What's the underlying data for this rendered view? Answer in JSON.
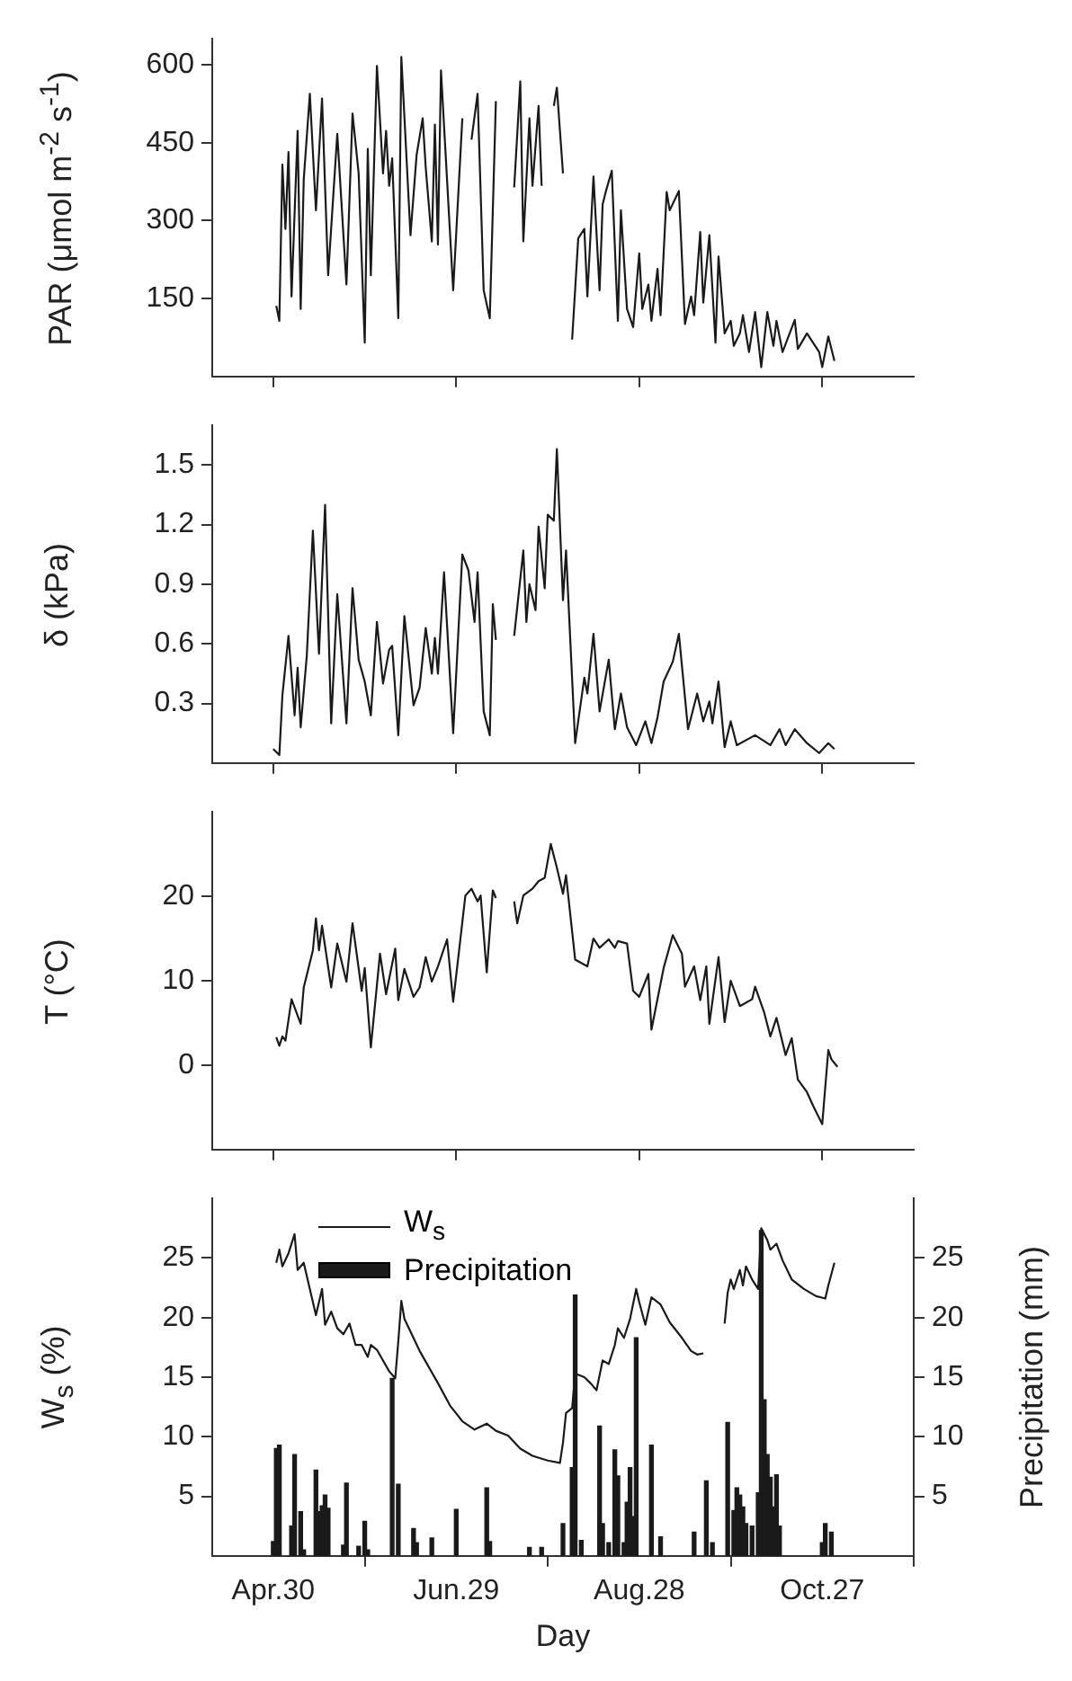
{
  "chart_data": [
    {
      "type": "line",
      "ylabel": "PAR (μmol m$^{-2}$ s$^{-1}$)",
      "tick_labels": "y",
      "xlim": [
        "--04-10",
        "--11-26"
      ],
      "xticks": [
        "--04-30",
        "--06-29",
        "--08-28",
        "--10-27"
      ],
      "ylim": [
        0,
        650
      ],
      "yticks": [
        150,
        300,
        450,
        600
      ],
      "color": "#1a1a1a",
      "x": [
        "--05-01",
        "--05-02",
        "--05-03",
        "--05-04",
        "--05-05",
        "--05-06",
        "--05-08",
        "--05-09",
        "--05-10",
        "--05-12",
        "--05-14",
        "--05-16",
        "--05-18",
        "--05-21",
        "--05-24",
        "--05-26",
        "--05-28",
        "--05-30",
        "--05-31",
        "--06-01",
        "--06-03",
        "--06-05",
        "--06-06",
        "--06-07",
        "--06-08",
        "--06-10",
        "--06-11",
        "--06-14",
        "--06-16",
        "--06-18",
        "--06-19",
        "--06-21",
        "--06-22",
        "--06-23",
        "--06-24",
        "--06-28",
        "--07-01",
        "--07-03",
        "--07-04",
        "--07-06",
        "--07-08",
        "--07-10",
        "--07-12",
        "--07-15",
        "--07-18",
        "--07-20",
        "--07-21",
        "--07-23",
        "--07-24",
        "--07-26",
        "--07-27",
        "--07-30",
        "--07-31",
        "--08-01",
        "--08-03",
        "--08-04",
        "--08-06",
        "--08-08",
        "--08-10",
        "--08-11",
        "--08-13",
        "--08-15",
        "--08-16",
        "--08-17",
        "--08-19",
        "--08-21",
        "--08-22",
        "--08-24",
        "--08-26",
        "--08-28",
        "--08-29",
        "--08-31",
        "--09-01",
        "--09-03",
        "--09-04",
        "--09-06",
        "--09-07",
        "--09-10",
        "--09-12",
        "--09-14",
        "--09-15",
        "--09-17",
        "--09-18",
        "--09-20",
        "--09-22",
        "--09-23",
        "--09-25",
        "--09-27",
        "--09-28",
        "--09-30",
        "--10-01",
        "--10-03",
        "--10-05",
        "--10-07",
        "--10-09",
        "--10-11",
        "--10-12",
        "--10-14",
        "--10-18",
        "--10-19",
        "--10-22",
        "--10-26",
        "--10-27",
        "--10-29",
        "--10-31"
      ],
      "values": [
        136,
        107,
        408,
        284,
        432,
        154,
        473,
        130,
        379,
        544,
        320,
        535,
        195,
        467,
        177,
        506,
        391,
        65,
        438,
        195,
        598,
        391,
        473,
        367,
        420,
        112,
        615,
        272,
        426,
        497,
        402,
        260,
        485,
        254,
        589,
        166,
        497,
        null,
        456,
        544,
        166,
        112,
        530,
        null,
        364,
        568,
        260,
        497,
        367,
        521,
        367,
        null,
        521,
        556,
        391,
        null,
        71,
        266,
        284,
        154,
        385,
        166,
        331,
        355,
        396,
        107,
        320,
        130,
        95,
        237,
        130,
        177,
        107,
        207,
        118,
        355,
        320,
        357,
        101,
        154,
        118,
        278,
        142,
        272,
        65,
        231,
        83,
        107,
        59,
        83,
        118,
        47,
        124,
        18,
        124,
        59,
        107,
        47,
        109,
        53,
        83,
        47,
        18,
        77,
        30
      ]
    },
    {
      "type": "line",
      "ylabel": "δ (kPa)",
      "tick_labels": "y",
      "xlim": [
        "--04-10",
        "--11-26"
      ],
      "xticks": [
        "--04-30",
        "--06-29",
        "--08-28",
        "--10-27"
      ],
      "ylim": [
        0,
        1.7
      ],
      "yticks": [
        0.3,
        0.6,
        0.9,
        1.2,
        1.5
      ],
      "color": "#1a1a1a",
      "x": [
        "--04-30",
        "--05-02",
        "--05-03",
        "--05-05",
        "--05-07",
        "--05-08",
        "--05-09",
        "--05-11",
        "--05-13",
        "--05-15",
        "--05-17",
        "--05-19",
        "--05-21",
        "--05-24",
        "--05-26",
        "--05-28",
        "--05-30",
        "--06-01",
        "--06-03",
        "--06-05",
        "--06-07",
        "--06-08",
        "--06-10",
        "--06-12",
        "--06-15",
        "--06-17",
        "--06-19",
        "--06-21",
        "--06-22",
        "--06-23",
        "--06-25",
        "--06-28",
        "--07-01",
        "--07-03",
        "--07-05",
        "--07-06",
        "--07-08",
        "--07-10",
        "--07-11",
        "--07-12",
        "--07-15",
        "--07-18",
        "--07-21",
        "--07-22",
        "--07-23",
        "--07-25",
        "--07-26",
        "--07-28",
        "--07-29",
        "--07-31",
        "--08-01",
        "--08-03",
        "--08-04",
        "--08-07",
        "--08-10",
        "--08-11",
        "--08-13",
        "--08-15",
        "--08-18",
        "--08-20",
        "--08-22",
        "--08-24",
        "--08-27",
        "--08-30",
        "--09-01",
        "--09-03",
        "--09-05",
        "--09-08",
        "--09-10",
        "--09-13",
        "--09-16",
        "--09-18",
        "--09-20",
        "--09-21",
        "--09-23",
        "--09-25",
        "--09-27",
        "--09-29",
        "--10-05",
        "--10-10",
        "--10-13",
        "--10-15",
        "--10-18",
        "--10-22",
        "--10-26",
        "--10-29",
        "--10-31"
      ],
      "values": [
        0.07,
        0.04,
        0.34,
        0.64,
        0.24,
        0.48,
        0.18,
        0.54,
        1.17,
        0.55,
        1.3,
        0.2,
        0.85,
        0.2,
        0.88,
        0.52,
        0.41,
        0.24,
        0.71,
        0.4,
        0.57,
        0.59,
        0.14,
        0.74,
        0.29,
        0.38,
        0.68,
        0.45,
        0.63,
        0.45,
        0.96,
        0.15,
        1.05,
        0.97,
        0.71,
        0.96,
        0.26,
        0.14,
        0.8,
        0.62,
        null,
        0.64,
        1.07,
        0.71,
        0.9,
        0.77,
        1.19,
        0.88,
        1.25,
        1.22,
        1.58,
        0.82,
        1.07,
        0.1,
        0.43,
        0.35,
        0.65,
        0.26,
        0.52,
        0.17,
        0.35,
        0.18,
        0.09,
        0.21,
        0.1,
        0.23,
        0.41,
        0.51,
        0.65,
        0.17,
        0.35,
        0.21,
        0.31,
        0.2,
        0.41,
        0.08,
        0.21,
        0.09,
        0.14,
        0.09,
        0.17,
        0.09,
        0.17,
        0.1,
        0.05,
        0.1,
        0.07
      ]
    },
    {
      "type": "line",
      "ylabel": "T (°C)",
      "tick_labels": "y",
      "xlim": [
        "--04-10",
        "--11-26"
      ],
      "xticks": [
        "--04-30",
        "--06-29",
        "--08-28",
        "--10-27"
      ],
      "ylim": [
        -10,
        30
      ],
      "yticks": [
        0,
        10,
        20
      ],
      "color": "#1a1a1a",
      "x": [
        "--05-01",
        "--05-02",
        "--05-03",
        "--05-04",
        "--05-06",
        "--05-09",
        "--05-10",
        "--05-13",
        "--05-14",
        "--05-15",
        "--05-16",
        "--05-19",
        "--05-21",
        "--05-24",
        "--05-26",
        "--05-29",
        "--05-30",
        "--06-01",
        "--06-04",
        "--06-06",
        "--06-09",
        "--06-10",
        "--06-12",
        "--06-15",
        "--06-17",
        "--06-19",
        "--06-21",
        "--06-23",
        "--06-26",
        "--06-28",
        "--07-02",
        "--07-04",
        "--07-06",
        "--07-07",
        "--07-09",
        "--07-11",
        "--07-12",
        "--07-15",
        "--07-18",
        "--07-19",
        "--07-21",
        "--07-24",
        "--07-26",
        "--07-28",
        "--07-30",
        "--08-01",
        "--08-03",
        "--08-04",
        "--08-07",
        "--08-11",
        "--08-13",
        "--08-15",
        "--08-18",
        "--08-20",
        "--08-21",
        "--08-24",
        "--08-26",
        "--08-28",
        "--08-31",
        "--09-01",
        "--09-05",
        "--09-08",
        "--09-11",
        "--09-12",
        "--09-15",
        "--09-17",
        "--09-19",
        "--09-20",
        "--09-23",
        "--09-25",
        "--09-27",
        "--09-30",
        "--10-04",
        "--10-05",
        "--10-08",
        "--10-10",
        "--10-12",
        "--10-15",
        "--10-17",
        "--10-19",
        "--10-22",
        "--10-24",
        "--10-27",
        "--10-29",
        "--10-30",
        "--11-01"
      ],
      "values": [
        3.3,
        2.3,
        3.4,
        2.9,
        7.8,
        4.9,
        9.2,
        13.6,
        17.4,
        13.6,
        16.5,
        9.2,
        14.4,
        9.9,
        16.8,
        8.8,
        11.5,
        2.1,
        13.2,
        8.4,
        13.8,
        7.7,
        11.4,
        8.1,
        9.2,
        12.8,
        9.9,
        11.7,
        14.9,
        7.5,
        20.1,
        20.9,
        19.4,
        20.1,
        11,
        20.7,
        19.8,
        null,
        19.4,
        16.8,
        20.1,
        20.9,
        21.8,
        22.2,
        26.2,
        23.4,
        20.3,
        22.5,
        12.5,
        11.7,
        15,
        13.9,
        14.9,
        13.9,
        14.7,
        14.4,
        8.8,
        8.1,
        10.8,
        4.2,
        11.5,
        15.4,
        13.2,
        9.3,
        11.7,
        7.7,
        11.7,
        4.9,
        12.8,
        5.1,
        10,
        7,
        7.8,
        9.3,
        6.2,
        3.4,
        5.6,
        1.2,
        3.2,
        -1.7,
        -3.2,
        -4.8,
        -7,
        1.8,
        0.7,
        -0.2
      ]
    },
    {
      "type": "line",
      "xlabel": "Day",
      "ylabel": "W$_{s}$ (%)",
      "y2label": "Precipitation (mm)",
      "legend": "top left",
      "xlim": [
        "--04-10",
        "--11-26"
      ],
      "xticks": [
        {
          "value": "--04-30",
          "label": "Apr.30"
        },
        {
          "value": "--06-29",
          "label": "Jun.29"
        },
        {
          "value": "--08-28",
          "label": "Aug.28"
        },
        {
          "value": "--10-27",
          "label": "Oct.27"
        }
      ],
      "ylim": [
        0,
        30
      ],
      "yticks": [
        5,
        10,
        15,
        20,
        25
      ],
      "y2lim": [
        0,
        30
      ],
      "y2ticks": [
        5,
        10,
        15,
        20,
        25
      ],
      "series": [
        {
          "name": "W$_{s}$",
          "color": "#1a1a1a",
          "x": [
            "--05-01",
            "--05-02",
            "--05-03",
            "--05-05",
            "--05-07",
            "--05-08",
            "--05-10",
            "--05-12",
            "--05-14",
            "--05-16",
            "--05-17",
            "--05-19",
            "--05-21",
            "--05-23",
            "--05-25",
            "--05-27",
            "--05-29",
            "--05-31",
            "--06-01",
            "--06-03",
            "--06-05",
            "--06-07",
            "--06-09",
            "--06-10",
            "--06-11",
            "--06-12",
            "--06-17",
            "--06-23",
            "--06-27",
            "--07-01",
            "--07-05",
            "--07-09",
            "--07-12",
            "--07-16",
            "--07-20",
            "--07-24",
            "--07-29",
            "--08-02",
            "--08-03",
            "--08-04",
            "--08-06",
            "--08-07",
            "--08-10",
            "--08-12",
            "--08-14",
            "--08-16",
            "--08-18",
            "--08-20",
            "--08-21",
            "--08-23",
            "--08-25",
            "--08-27",
            "--08-28",
            "--08-30",
            "--09-01",
            "--09-04",
            "--09-07",
            "--09-11",
            "--09-14",
            "--09-16",
            "--09-18",
            "--09-21",
            "--09-25",
            "--09-26",
            "--09-27",
            "--09-28",
            "--09-30",
            "--10-01",
            "--10-02",
            "--10-04",
            "--10-06",
            "--10-07",
            "--10-09",
            "--10-10",
            "--10-12",
            "--10-14",
            "--10-17",
            "--10-21",
            "--10-25",
            "--10-28",
            "--10-29",
            "--10-31"
          ],
          "values": [
            24.6,
            25.7,
            24.3,
            25.4,
            27,
            24,
            24.6,
            22.4,
            20.2,
            22.4,
            19.4,
            20.5,
            19.1,
            18.6,
            19.5,
            17.7,
            17.7,
            16.7,
            17.7,
            17.3,
            16.4,
            15.5,
            14.9,
            18,
            21.4,
            19.9,
            17.2,
            14.5,
            12.6,
            11.3,
            10.6,
            11.1,
            10.5,
            10.1,
            9,
            8.4,
            8,
            7.8,
            9.5,
            12,
            12.4,
            15.3,
            15,
            14.5,
            13.9,
            16.4,
            16.1,
            17.7,
            19.1,
            18.3,
            19.9,
            22.4,
            21.3,
            19.4,
            21.7,
            21.1,
            19.6,
            18.3,
            17.2,
            16.9,
            17,
            null,
            19.5,
            22.1,
            23.2,
            22.4,
            24,
            22.7,
            24.3,
            23.2,
            22.4,
            27.5,
            26.5,
            25.7,
            26.2,
            24.8,
            23.2,
            22.4,
            21.8,
            21.6,
            22.7,
            24.6
          ]
        },
        {
          "name": "Precipitation",
          "type": "bar",
          "axis": "y2",
          "color": "#1a1a1a",
          "x": [
            "--04-30",
            "--05-01",
            "--05-02",
            "--05-06",
            "--05-07",
            "--05-09",
            "--05-10",
            "--05-14",
            "--05-15",
            "--05-16",
            "--05-17",
            "--05-18",
            "--05-23",
            "--05-24",
            "--05-28",
            "--05-30",
            "--05-31",
            "--06-08",
            "--06-10",
            "--06-15",
            "--06-16",
            "--06-21",
            "--06-29",
            "--07-09",
            "--07-10",
            "--07-23",
            "--07-27",
            "--08-03",
            "--08-06",
            "--08-07",
            "--08-09",
            "--08-15",
            "--08-16",
            "--08-18",
            "--08-20",
            "--08-21",
            "--08-23",
            "--08-24",
            "--08-25",
            "--08-26",
            "--08-27",
            "--09-01",
            "--09-04",
            "--09-15",
            "--09-19",
            "--09-21",
            "--09-26",
            "--09-28",
            "--09-29",
            "--09-30",
            "--10-01",
            "--10-02",
            "--10-04",
            "--10-06",
            "--10-07",
            "--10-08",
            "--10-09",
            "--10-10",
            "--10-11",
            "--10-12",
            "--10-13",
            "--10-27",
            "--10-28",
            "--10-30"
          ],
          "values": [
            1.2,
            9,
            9.3,
            2.5,
            8.5,
            3.7,
            0.5,
            7.2,
            3.7,
            4.2,
            5.1,
            4,
            0.9,
            6.1,
            0.8,
            2.9,
            0.5,
            14.9,
            6,
            2.3,
            1.1,
            1.5,
            3.9,
            5.7,
            1.2,
            0.7,
            0.7,
            2.7,
            7.4,
            21.9,
            1.3,
            10.9,
            2.7,
            1.1,
            8.9,
            6.7,
            1.1,
            4.5,
            7.4,
            3.3,
            18.3,
            9.3,
            1.6,
            2,
            6.3,
            1.1,
            11.2,
            3.8,
            5.7,
            5.1,
            4.1,
            2.7,
            2.5,
            5.3,
            27.3,
            13.1,
            8.5,
            6.6,
            4.1,
            6.8,
            2.5,
            1.1,
            2.7,
            2
          ]
        }
      ]
    }
  ]
}
